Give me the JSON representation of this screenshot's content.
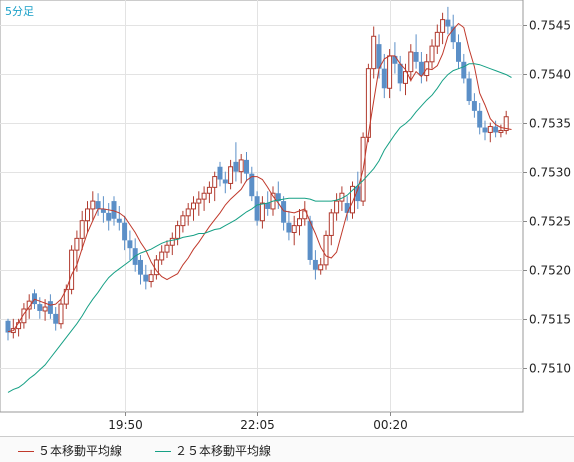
{
  "chart_data": {
    "type": "candlestick",
    "timeframe_label": "5分足",
    "ylim": [
      0.75055,
      0.75475
    ],
    "y_ticks": [
      "0.7545",
      "0.7540",
      "0.7535",
      "0.7530",
      "0.7525",
      "0.7520",
      "0.7515",
      "0.7510"
    ],
    "x_ticks": [
      "19:50",
      "22:05",
      "00:20"
    ],
    "series": [
      {
        "name": "５本移動平均線",
        "color": "#c0392b",
        "values": [
          0.75137,
          0.75138,
          0.75146,
          0.75155,
          0.75162,
          0.7517,
          0.75168,
          0.75166,
          0.75164,
          0.75165,
          0.7517,
          0.7518,
          0.75195,
          0.75205,
          0.75222,
          0.75238,
          0.7525,
          0.75262,
          0.75262,
          0.75261,
          0.7526,
          0.75258,
          0.75254,
          0.75246,
          0.75238,
          0.75228,
          0.7522,
          0.75208,
          0.75199,
          0.75193,
          0.7519,
          0.75193,
          0.75196,
          0.75205,
          0.75212,
          0.75221,
          0.75228,
          0.75236,
          0.75244,
          0.75251,
          0.75258,
          0.75266,
          0.75272,
          0.75277,
          0.75282,
          0.75291,
          0.75295,
          0.75295,
          0.75292,
          0.75284,
          0.75275,
          0.75268,
          0.7526,
          0.75259,
          0.75258,
          0.7526,
          0.75262,
          0.75249,
          0.75237,
          0.75223,
          0.75214,
          0.75212,
          0.75218,
          0.75238,
          0.75258,
          0.75269,
          0.75282,
          0.75302,
          0.75338,
          0.75372,
          0.75405,
          0.75415,
          0.75418,
          0.75418,
          0.7541,
          0.75404,
          0.75393,
          0.75402,
          0.75397,
          0.75405,
          0.75404,
          0.75408,
          0.7542,
          0.75438,
          0.75445,
          0.75451,
          0.75447,
          0.75425,
          0.75407,
          0.7538,
          0.75368,
          0.75354,
          0.75348,
          0.75345,
          0.75344,
          0.75343
        ]
      },
      {
        "name": "２５本移動平均線",
        "color": "#16a085",
        "values": [
          0.75075,
          0.75078,
          0.7508,
          0.75084,
          0.75089,
          0.75093,
          0.75098,
          0.75103,
          0.7511,
          0.75117,
          0.75124,
          0.75131,
          0.75138,
          0.75145,
          0.75153,
          0.75162,
          0.7517,
          0.75177,
          0.75185,
          0.75192,
          0.75197,
          0.75201,
          0.75205,
          0.75209,
          0.75214,
          0.75217,
          0.75219,
          0.75221,
          0.75224,
          0.75227,
          0.75229,
          0.7523,
          0.75231,
          0.75233,
          0.75234,
          0.75235,
          0.75237,
          0.75237,
          0.75239,
          0.75241,
          0.75242,
          0.75245,
          0.75248,
          0.75251,
          0.75255,
          0.75259,
          0.75262,
          0.75266,
          0.75267,
          0.75268,
          0.7527,
          0.75271,
          0.75272,
          0.75273,
          0.75273,
          0.75273,
          0.75273,
          0.75272,
          0.7527,
          0.7527,
          0.7527,
          0.7527,
          0.75271,
          0.75273,
          0.75276,
          0.75281,
          0.75286,
          0.75291,
          0.75297,
          0.75303,
          0.75311,
          0.75322,
          0.7533,
          0.75338,
          0.75345,
          0.75349,
          0.75354,
          0.75361,
          0.75367,
          0.75373,
          0.75378,
          0.75385,
          0.75393,
          0.75399,
          0.75403,
          0.75405,
          0.75407,
          0.7541,
          0.7541,
          0.75409,
          0.75407,
          0.75405,
          0.75403,
          0.75401,
          0.75399,
          0.75396
        ]
      }
    ],
    "candles": [
      [
        0.75148,
        0.7515,
        0.75128,
        0.75136
      ],
      [
        0.75136,
        0.7515,
        0.7513,
        0.7514
      ],
      [
        0.7514,
        0.7515,
        0.75132,
        0.75146
      ],
      [
        0.75146,
        0.75166,
        0.7514,
        0.7516
      ],
      [
        0.7516,
        0.75175,
        0.7515,
        0.75168
      ],
      [
        0.75176,
        0.7518,
        0.7516,
        0.75165
      ],
      [
        0.75165,
        0.75172,
        0.7515,
        0.75158
      ],
      [
        0.75158,
        0.7517,
        0.75148,
        0.75162
      ],
      [
        0.75168,
        0.75175,
        0.7515,
        0.75155
      ],
      [
        0.75155,
        0.75162,
        0.75138,
        0.75145
      ],
      [
        0.75145,
        0.7517,
        0.7514,
        0.75165
      ],
      [
        0.75165,
        0.75185,
        0.7516,
        0.7518
      ],
      [
        0.7518,
        0.75225,
        0.75175,
        0.7522
      ],
      [
        0.7522,
        0.7524,
        0.75198,
        0.75232
      ],
      [
        0.75232,
        0.7526,
        0.7522,
        0.7525
      ],
      [
        0.7525,
        0.7527,
        0.75238,
        0.75262
      ],
      [
        0.75262,
        0.7528,
        0.7525,
        0.7527
      ],
      [
        0.7527,
        0.75278,
        0.75255,
        0.75262
      ],
      [
        0.75262,
        0.75275,
        0.75248,
        0.75258
      ],
      [
        0.75258,
        0.75268,
        0.7524,
        0.7525
      ],
      [
        0.7527,
        0.75275,
        0.75245,
        0.75252
      ],
      [
        0.75252,
        0.75265,
        0.7524,
        0.75248
      ],
      [
        0.75248,
        0.75255,
        0.7522,
        0.7523
      ],
      [
        0.7523,
        0.7524,
        0.7521,
        0.75222
      ],
      [
        0.75222,
        0.75232,
        0.75198,
        0.75205
      ],
      [
        0.7521,
        0.75215,
        0.75185,
        0.75195
      ],
      [
        0.75195,
        0.75205,
        0.7518,
        0.75188
      ],
      [
        0.75188,
        0.752,
        0.75182,
        0.75195
      ],
      [
        0.75195,
        0.75215,
        0.7519,
        0.7521
      ],
      [
        0.7521,
        0.75225,
        0.75205,
        0.75218
      ],
      [
        0.75218,
        0.7523,
        0.75212,
        0.75225
      ],
      [
        0.75225,
        0.75238,
        0.75215,
        0.75232
      ],
      [
        0.75232,
        0.7525,
        0.75225,
        0.75245
      ],
      [
        0.75245,
        0.7526,
        0.75238,
        0.75255
      ],
      [
        0.75255,
        0.75268,
        0.75245,
        0.75262
      ],
      [
        0.75262,
        0.75275,
        0.7525,
        0.75268
      ],
      [
        0.75268,
        0.7528,
        0.75255,
        0.75272
      ],
      [
        0.75272,
        0.75285,
        0.7526,
        0.75278
      ],
      [
        0.75278,
        0.7529,
        0.75268,
        0.75284
      ],
      [
        0.75284,
        0.753,
        0.7527,
        0.75295
      ],
      [
        0.75305,
        0.7531,
        0.75285,
        0.75292
      ],
      [
        0.75292,
        0.753,
        0.75278,
        0.75288
      ],
      [
        0.75288,
        0.75312,
        0.75282,
        0.75305
      ],
      [
        0.7531,
        0.7533,
        0.7529,
        0.753
      ],
      [
        0.753,
        0.75318,
        0.75288,
        0.75312
      ],
      [
        0.75312,
        0.7532,
        0.7529,
        0.75298
      ],
      [
        0.75298,
        0.75305,
        0.7527,
        0.75275
      ],
      [
        0.75275,
        0.7528,
        0.75245,
        0.7525
      ],
      [
        0.7525,
        0.75275,
        0.75242,
        0.75268
      ],
      [
        0.75268,
        0.7528,
        0.75255,
        0.75262
      ],
      [
        0.75262,
        0.75285,
        0.75255,
        0.75278
      ],
      [
        0.75278,
        0.7529,
        0.75262,
        0.7527
      ],
      [
        0.7527,
        0.75275,
        0.7524,
        0.75248
      ],
      [
        0.75248,
        0.7526,
        0.7523,
        0.75238
      ],
      [
        0.75238,
        0.75255,
        0.75225,
        0.75245
      ],
      [
        0.75245,
        0.75262,
        0.75235,
        0.75252
      ],
      [
        0.75252,
        0.7527,
        0.75245,
        0.7526
      ],
      [
        0.7525,
        0.75255,
        0.75205,
        0.7521
      ],
      [
        0.7521,
        0.7522,
        0.7519,
        0.752
      ],
      [
        0.752,
        0.75212,
        0.75195,
        0.75205
      ],
      [
        0.75205,
        0.7524,
        0.752,
        0.75235
      ],
      [
        0.75235,
        0.75262,
        0.75225,
        0.75258
      ],
      [
        0.75258,
        0.75278,
        0.7525,
        0.7527
      ],
      [
        0.7527,
        0.75285,
        0.7526,
        0.75278
      ],
      [
        0.75268,
        0.75275,
        0.7525,
        0.75258
      ],
      [
        0.75258,
        0.7529,
        0.75252,
        0.75285
      ],
      [
        0.75285,
        0.753,
        0.75262,
        0.7527
      ],
      [
        0.7527,
        0.7534,
        0.75265,
        0.75335
      ],
      [
        0.75335,
        0.7541,
        0.7533,
        0.75405
      ],
      [
        0.75405,
        0.75448,
        0.75395,
        0.75438
      ],
      [
        0.7543,
        0.7544,
        0.75395,
        0.75405
      ],
      [
        0.75405,
        0.7542,
        0.75375,
        0.75385
      ],
      [
        0.75385,
        0.75425,
        0.75375,
        0.75418
      ],
      [
        0.75418,
        0.75432,
        0.754,
        0.7541
      ],
      [
        0.7541,
        0.75418,
        0.75382,
        0.7539
      ],
      [
        0.7539,
        0.7541,
        0.75378,
        0.75402
      ],
      [
        0.75402,
        0.7543,
        0.75392,
        0.75422
      ],
      [
        0.75422,
        0.7544,
        0.75405,
        0.75412
      ],
      [
        0.75412,
        0.75422,
        0.7539,
        0.75398
      ],
      [
        0.75398,
        0.7542,
        0.75392,
        0.75412
      ],
      [
        0.75412,
        0.75435,
        0.75405,
        0.75428
      ],
      [
        0.75428,
        0.7545,
        0.7542,
        0.75442
      ],
      [
        0.75442,
        0.75462,
        0.7543,
        0.75455
      ],
      [
        0.75455,
        0.75468,
        0.7544,
        0.75448
      ],
      [
        0.75448,
        0.7546,
        0.75425,
        0.75432
      ],
      [
        0.75432,
        0.7544,
        0.75405,
        0.75412
      ],
      [
        0.75412,
        0.7542,
        0.7539,
        0.75395
      ],
      [
        0.75395,
        0.75402,
        0.75368,
        0.75372
      ],
      [
        0.75372,
        0.7538,
        0.75355,
        0.75362
      ],
      [
        0.75362,
        0.7537,
        0.75338,
        0.75345
      ],
      [
        0.75345,
        0.75352,
        0.75332,
        0.7534
      ],
      [
        0.7534,
        0.7535,
        0.7533,
        0.75346
      ],
      [
        0.75346,
        0.75352,
        0.75335,
        0.7534
      ],
      [
        0.7534,
        0.75348,
        0.75335,
        0.75342
      ],
      [
        0.75342,
        0.75362,
        0.75338,
        0.75356
      ]
    ],
    "up_color": "#b03a2e",
    "down_color": "#5b8fc7",
    "grid": true
  }
}
